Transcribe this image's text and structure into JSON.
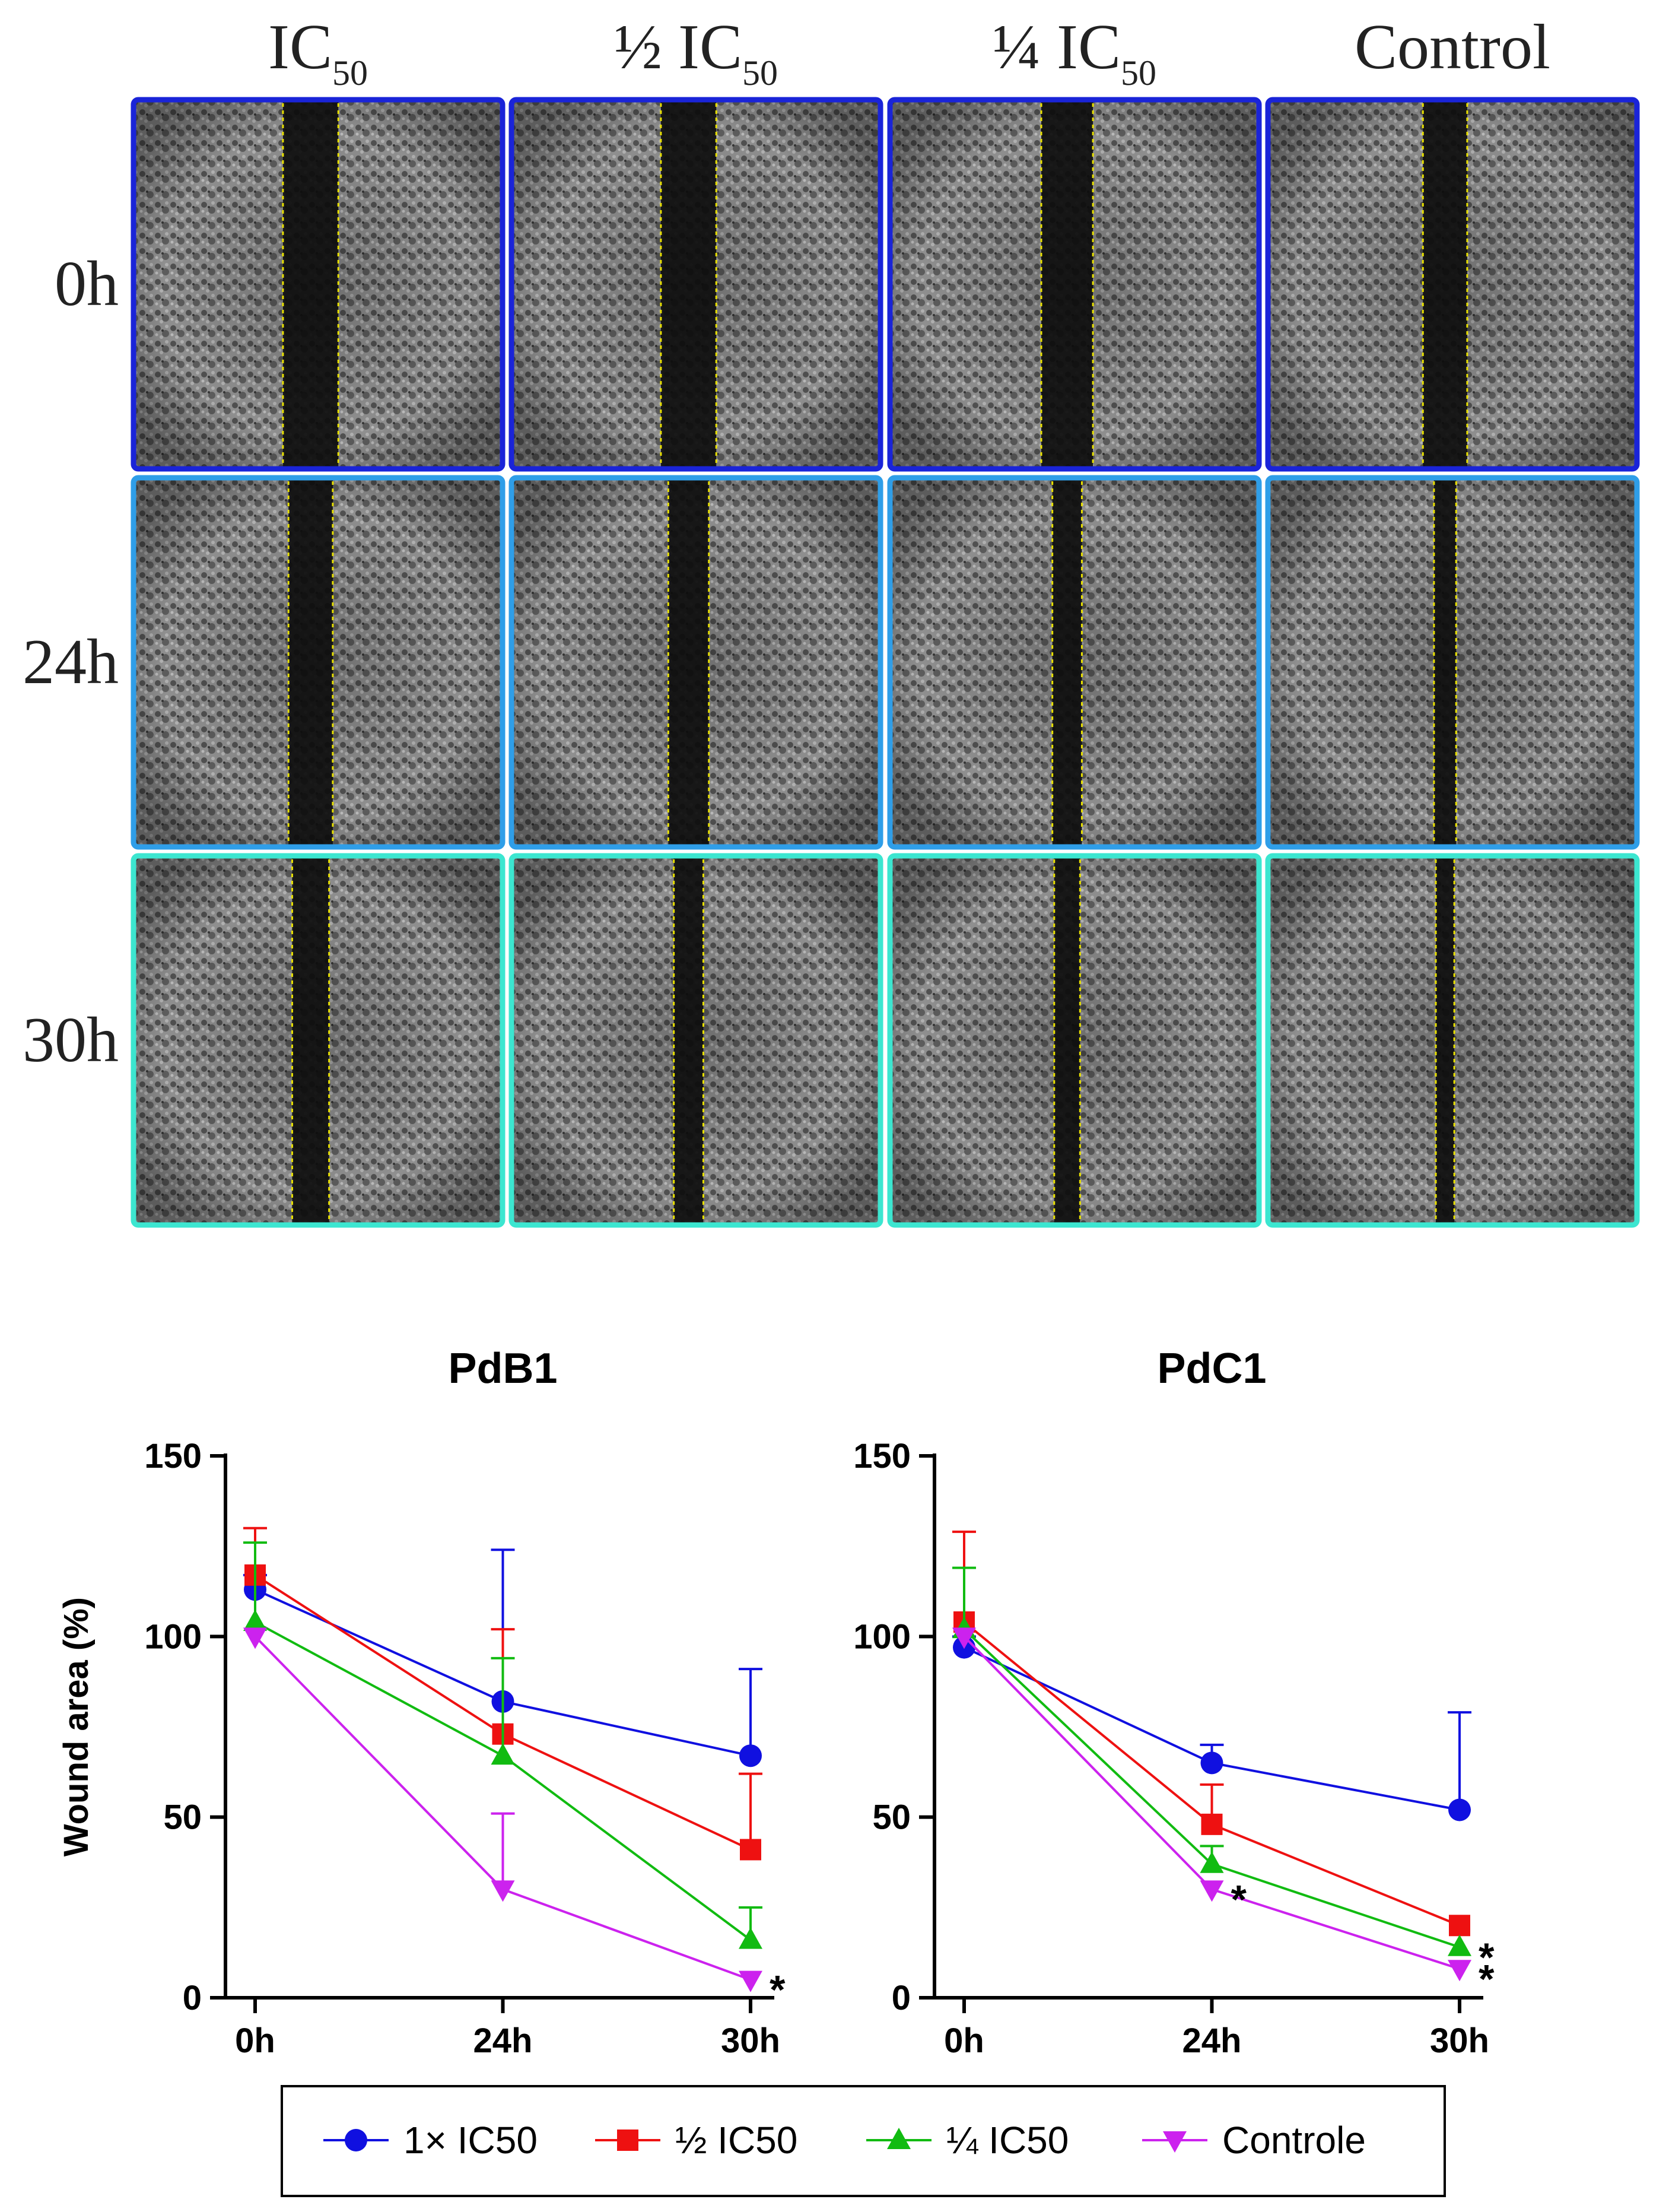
{
  "micrographs": {
    "column_headers": [
      {
        "main": "IC",
        "sub": "50"
      },
      {
        "main": "½ IC",
        "sub": "50"
      },
      {
        "main": "¼ IC",
        "sub": "50"
      },
      {
        "main": "Control",
        "sub": ""
      }
    ],
    "row_labels": [
      "0h",
      "24h",
      "30h"
    ],
    "row_border_colors": [
      "#1a24d8",
      "#2f9ee8",
      "#3ce6d0"
    ],
    "wound_marker_color": "#e8e000",
    "wound_widths": [
      [
        0.15,
        0.15,
        0.14,
        0.12
      ],
      [
        0.12,
        0.11,
        0.08,
        0.06
      ],
      [
        0.1,
        0.08,
        0.07,
        0.05
      ]
    ]
  },
  "legend": {
    "items": [
      {
        "label": "1× IC50",
        "color": "#1010e0",
        "marker": "circle"
      },
      {
        "label": "½ IC50",
        "color": "#ee1111",
        "marker": "square"
      },
      {
        "label": "¼ IC50",
        "color": "#11bb11",
        "marker": "triangle-up"
      },
      {
        "label": "Controle",
        "color": "#cc22ee",
        "marker": "triangle-down"
      }
    ]
  },
  "chart_data": [
    {
      "type": "line",
      "title": "PdB1",
      "xlabel": "",
      "ylabel": "Wound area  (%)",
      "categories": [
        "0h",
        "24h",
        "30h"
      ],
      "ylim": [
        0,
        150
      ],
      "yticks": [
        0,
        50,
        100,
        150
      ],
      "series": [
        {
          "name": "1× IC50",
          "values": [
            113,
            82,
            67
          ],
          "err": [
            4,
            42,
            24
          ]
        },
        {
          "name": "½ IC50",
          "values": [
            117,
            73,
            41
          ],
          "err": [
            13,
            29,
            21
          ]
        },
        {
          "name": "¼ IC50",
          "values": [
            104,
            67,
            16
          ],
          "err": [
            22,
            27,
            9
          ]
        },
        {
          "name": "Controle",
          "values": [
            100,
            30,
            5
          ],
          "err": [
            0,
            21,
            0
          ]
        }
      ],
      "annotations": [
        {
          "text": "*",
          "category": "30h",
          "y": 5
        }
      ]
    },
    {
      "type": "line",
      "title": "PdC1",
      "xlabel": "",
      "ylabel": "",
      "categories": [
        "0h",
        "24h",
        "30h"
      ],
      "ylim": [
        0,
        150
      ],
      "yticks": [
        0,
        50,
        100,
        150
      ],
      "series": [
        {
          "name": "1× IC50",
          "values": [
            97,
            65,
            52
          ],
          "err": [
            3,
            5,
            27
          ]
        },
        {
          "name": "½ IC50",
          "values": [
            104,
            48,
            20
          ],
          "err": [
            25,
            11,
            0
          ]
        },
        {
          "name": "¼ IC50",
          "values": [
            102,
            37,
            14
          ],
          "err": [
            17,
            5,
            0
          ]
        },
        {
          "name": "Controle",
          "values": [
            100,
            30,
            8
          ],
          "err": [
            0,
            0,
            0
          ]
        }
      ],
      "annotations": [
        {
          "text": "*",
          "category": "24h",
          "y": 30
        },
        {
          "text": "*",
          "category": "30h",
          "y": 14
        },
        {
          "text": "*",
          "category": "30h",
          "y": 8
        }
      ]
    }
  ]
}
